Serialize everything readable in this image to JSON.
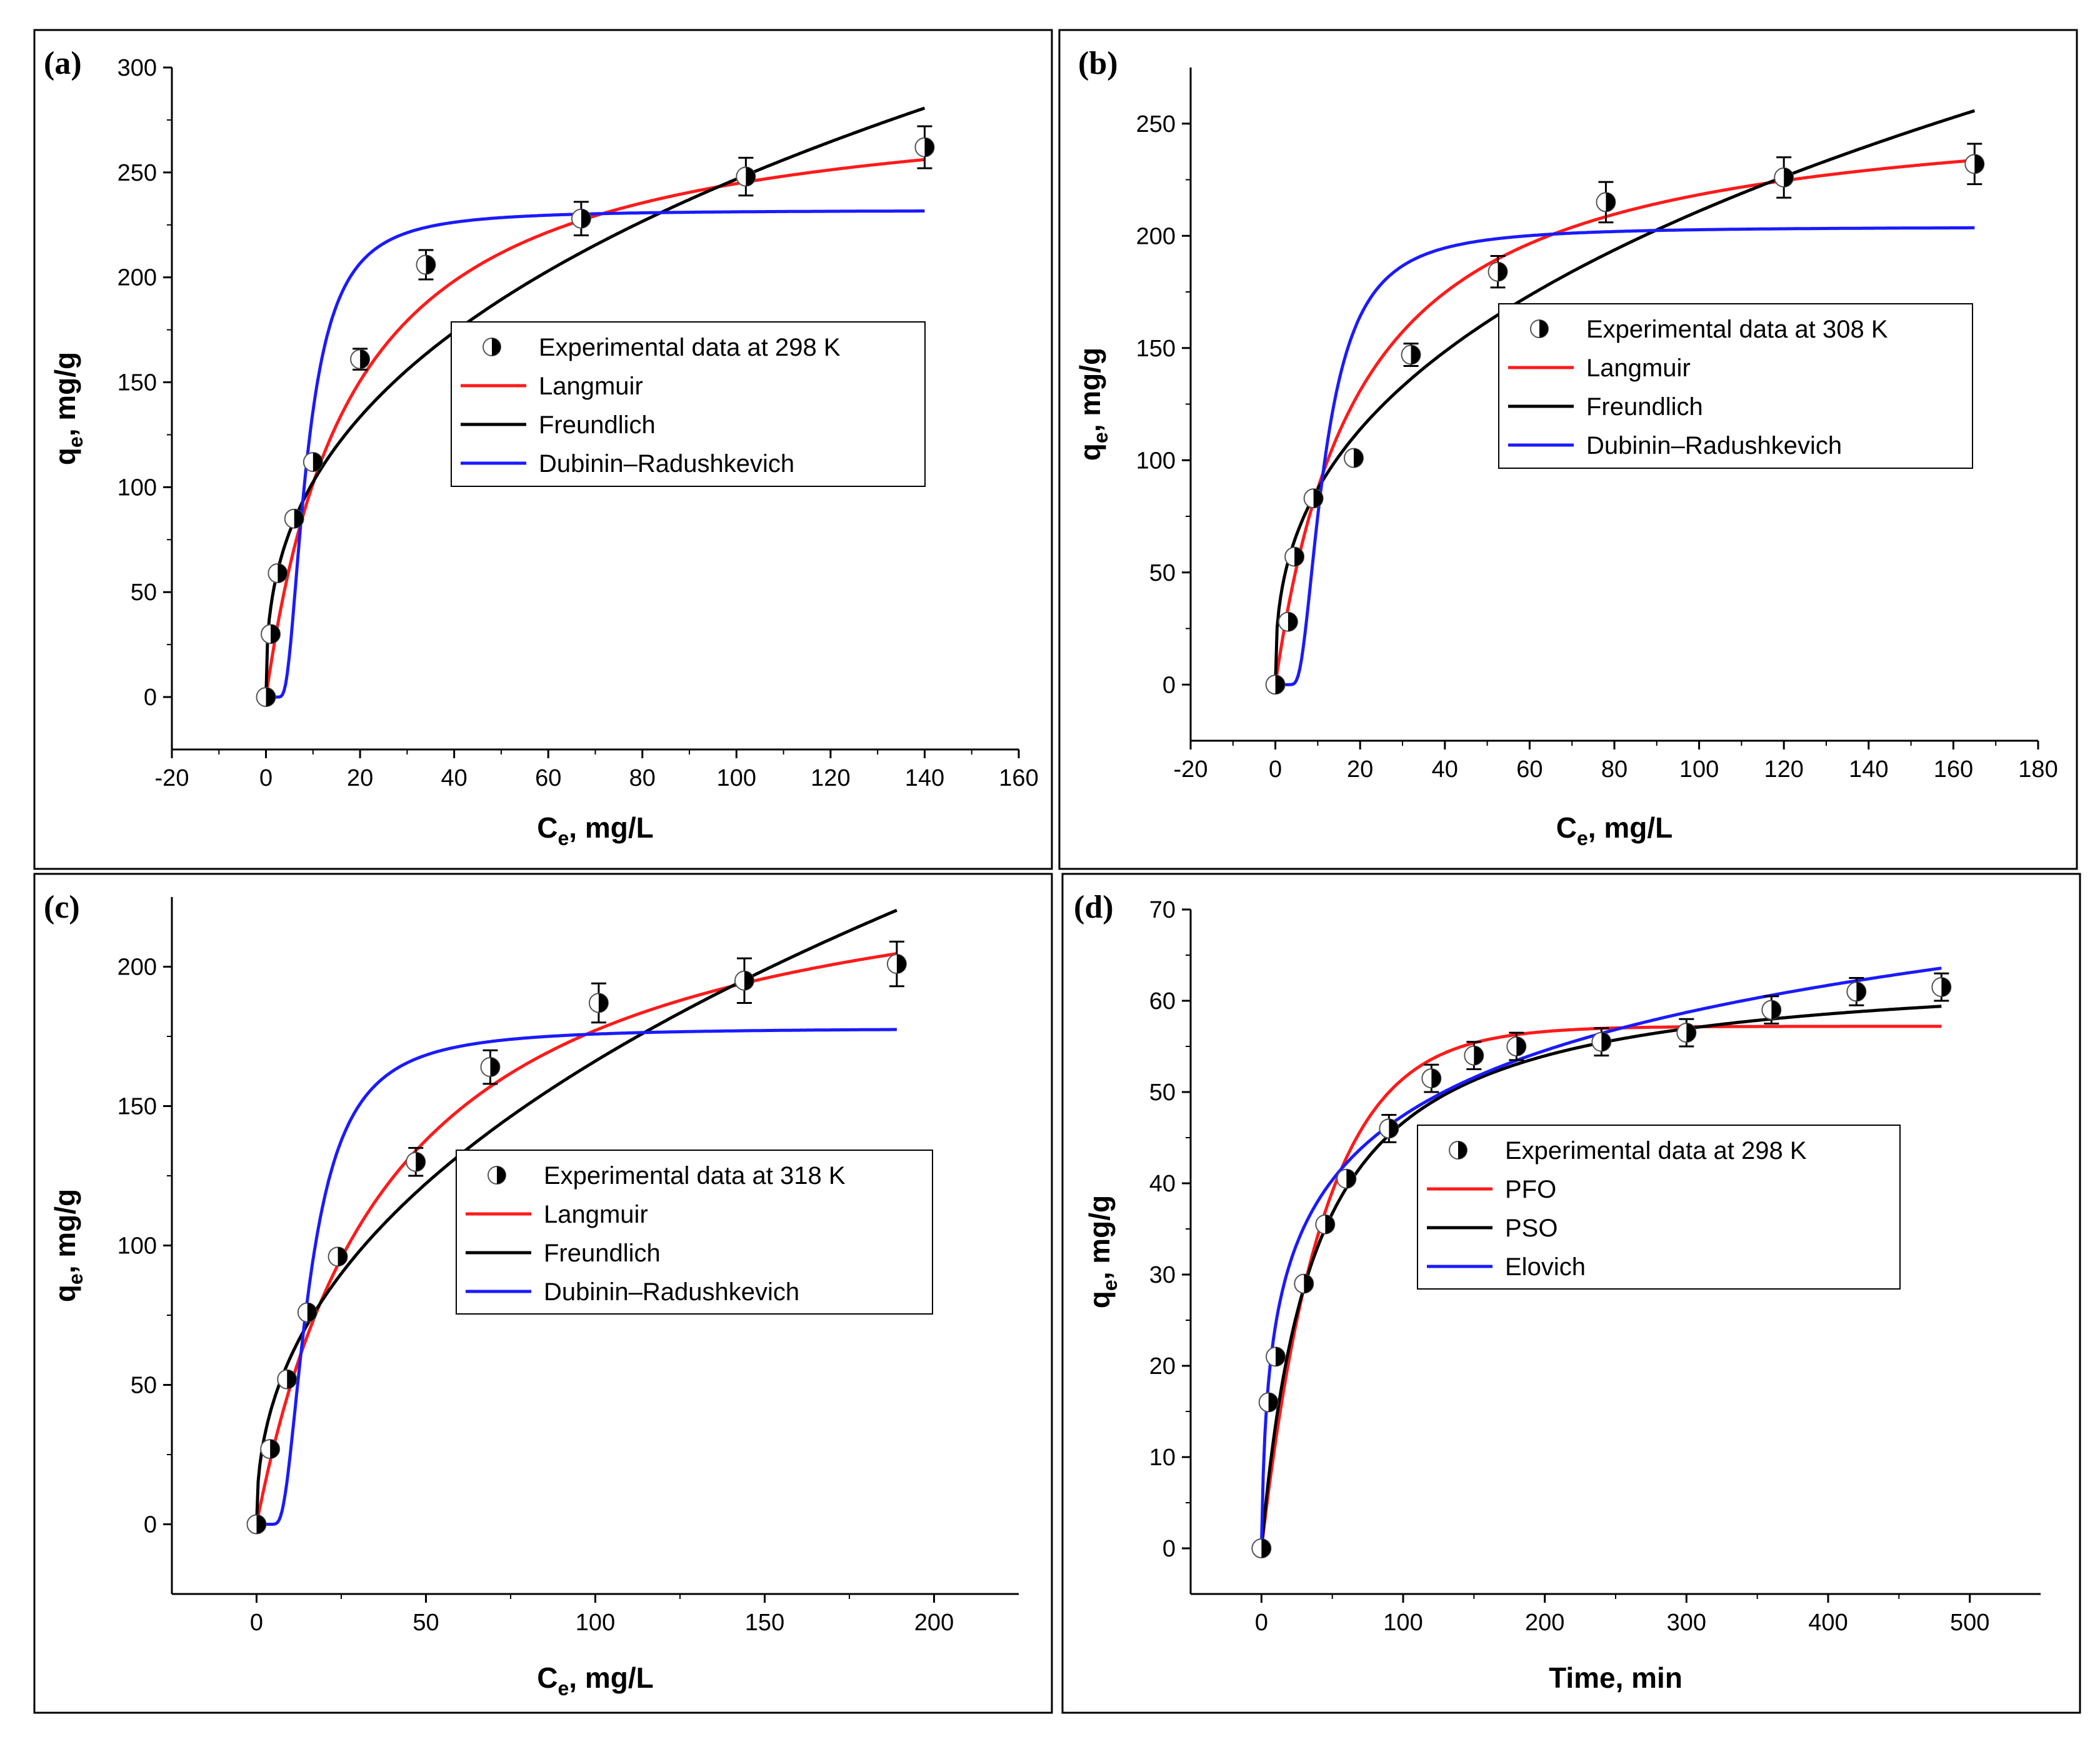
{
  "chart_data": [
    {
      "type": "scatter",
      "panel": "(a)",
      "xlabel": "Ce, mg/L",
      "xlabel_main": "C",
      "xlabel_sub": "e",
      "xlabel_rest": ", mg/L",
      "ylabel_main": "q",
      "ylabel_sub": "e",
      "ylabel_rest": ", mg/g",
      "xlim": [
        -20,
        160
      ],
      "ylim": [
        -25,
        300
      ],
      "xticks": [
        -20,
        0,
        20,
        40,
        60,
        80,
        100,
        120,
        140,
        160
      ],
      "yticks": [
        0,
        50,
        100,
        150,
        200,
        250,
        300
      ],
      "series": [
        {
          "name": "Experimental data at 298 K",
          "kind": "points",
          "x": [
            0,
            1,
            2.5,
            6,
            10,
            20,
            34,
            67,
            102,
            140
          ],
          "y": [
            0,
            30,
            59,
            85,
            112,
            161,
            206,
            228,
            248,
            262
          ],
          "err": [
            0,
            0,
            0,
            0,
            0,
            5,
            7,
            8,
            9,
            10
          ]
        },
        {
          "name": "Langmuir",
          "kind": "line",
          "color": "#ff1a1a",
          "model": "langmuir",
          "params": {
            "qm": 290,
            "k": 0.054
          },
          "xmax": 140
        },
        {
          "name": "Freundlich",
          "kind": "line",
          "color": "#000000",
          "model": "freundlich",
          "params": {
            "k": 42.5,
            "n": 0.382
          },
          "xmax": 140
        },
        {
          "name": "Dubinin–Radushkevich",
          "kind": "line",
          "color": "#1a1aff",
          "model": "dr",
          "params": {
            "qm": 232,
            "b": 7.5,
            "p": 2.2
          },
          "xmax": 140
        }
      ],
      "legend_position": "center-right"
    },
    {
      "type": "scatter",
      "panel": "(b)",
      "xlabel": "Ce, mg/L",
      "xlabel_main": "C",
      "xlabel_sub": "e",
      "xlabel_rest": ", mg/L",
      "ylabel_main": "q",
      "ylabel_sub": "e",
      "ylabel_rest": ", mg/g",
      "xlim": [
        -20,
        180
      ],
      "ylim": [
        -25,
        275
      ],
      "xticks": [
        -20,
        0,
        20,
        40,
        60,
        80,
        100,
        120,
        140,
        160,
        180
      ],
      "yticks": [
        0,
        50,
        100,
        150,
        200,
        250
      ],
      "series": [
        {
          "name": "Experimental data at 308 K",
          "kind": "points",
          "x": [
            0,
            3,
            4.5,
            9,
            18.5,
            32,
            52.5,
            78,
            120,
            165
          ],
          "y": [
            0,
            28,
            57,
            83,
            101,
            147,
            184,
            215,
            226,
            232
          ],
          "err": [
            0,
            0,
            0,
            0,
            0,
            5,
            7,
            9,
            9,
            9
          ]
        },
        {
          "name": "Langmuir",
          "kind": "line",
          "color": "#ff1a1a",
          "model": "langmuir",
          "params": {
            "qm": 262,
            "k": 0.05
          },
          "xmax": 165
        },
        {
          "name": "Freundlich",
          "kind": "line",
          "color": "#000000",
          "model": "freundlich",
          "params": {
            "k": 36,
            "n": 0.384
          },
          "xmax": 165
        },
        {
          "name": "Dubinin–Radushkevich",
          "kind": "line",
          "color": "#1a1aff",
          "model": "dr",
          "params": {
            "qm": 204,
            "b": 10,
            "p": 2.2
          },
          "xmax": 165
        }
      ],
      "legend_position": "center-right"
    },
    {
      "type": "scatter",
      "panel": "(c)",
      "xlabel": "Ce, mg/L",
      "xlabel_main": "C",
      "xlabel_sub": "e",
      "xlabel_rest": ", mg/L",
      "ylabel_main": "q",
      "ylabel_sub": "e",
      "ylabel_rest": ", mg/g",
      "xlim": [
        -25,
        225
      ],
      "ylim": [
        -25,
        225
      ],
      "xticks": [
        0,
        50,
        100,
        150,
        200
      ],
      "yticks": [
        0,
        50,
        100,
        150,
        200
      ],
      "series": [
        {
          "name": "Experimental data at 318 K",
          "kind": "points",
          "x": [
            0,
            4,
            9,
            15,
            24,
            47,
            69,
            101,
            144,
            189
          ],
          "y": [
            0,
            27,
            52,
            76,
            96,
            130,
            164,
            187,
            195,
            201
          ],
          "err": [
            0,
            0,
            0,
            0,
            0,
            5,
            6,
            7,
            8,
            8
          ]
        },
        {
          "name": "Langmuir",
          "kind": "line",
          "color": "#ff1a1a",
          "model": "langmuir",
          "params": {
            "qm": 248,
            "k": 0.025
          },
          "xmax": 189
        },
        {
          "name": "Freundlich",
          "kind": "line",
          "color": "#000000",
          "model": "freundlich",
          "params": {
            "k": 21.6,
            "n": 0.443
          },
          "xmax": 189
        },
        {
          "name": "Dubinin–Radushkevich",
          "kind": "line",
          "color": "#1a1aff",
          "model": "dr",
          "params": {
            "qm": 178,
            "b": 13.5,
            "p": 2.2
          },
          "xmax": 189
        }
      ],
      "legend_position": "center-right"
    },
    {
      "type": "scatter",
      "panel": "(d)",
      "xlabel": "Time, min",
      "xlabel_main": "Time, min",
      "xlabel_sub": "",
      "xlabel_rest": "",
      "ylabel_main": "q",
      "ylabel_sub": "e",
      "ylabel_rest": ", mg/g",
      "xlim": [
        -50,
        550
      ],
      "ylim": [
        -5,
        70
      ],
      "xticks": [
        0,
        100,
        200,
        300,
        400,
        500
      ],
      "yticks": [
        0,
        10,
        20,
        30,
        40,
        50,
        60,
        70
      ],
      "series": [
        {
          "name": "Experimental data at 298 K",
          "kind": "points",
          "x": [
            0,
            5,
            10,
            30,
            45,
            60,
            90,
            120,
            150,
            180,
            240,
            300,
            360,
            420,
            480
          ],
          "y": [
            0,
            16,
            21,
            29,
            35.5,
            40.5,
            46,
            51.5,
            54,
            55,
            55.5,
            56.5,
            59,
            61,
            61.5
          ],
          "err": [
            0,
            0,
            0,
            0,
            0,
            0,
            1.5,
            1.5,
            1.5,
            1.5,
            1.5,
            1.5,
            1.5,
            1.5,
            1.5
          ]
        },
        {
          "name": "PFO",
          "kind": "line",
          "color": "#ff1a1a",
          "model": "pfo",
          "params": {
            "qe": 57.2,
            "k": 0.023
          },
          "xmax": 480
        },
        {
          "name": "PSO",
          "kind": "line",
          "color": "#000000",
          "model": "pso",
          "params": {
            "qe": 64,
            "k": 0.00042
          },
          "xmax": 480
        },
        {
          "name": "Elovich",
          "kind": "line",
          "color": "#1a1aff",
          "model": "elovich",
          "params": {
            "a": 10,
            "b": 0.0966
          },
          "xmax": 480
        }
      ],
      "legend_position": "center-right"
    }
  ]
}
